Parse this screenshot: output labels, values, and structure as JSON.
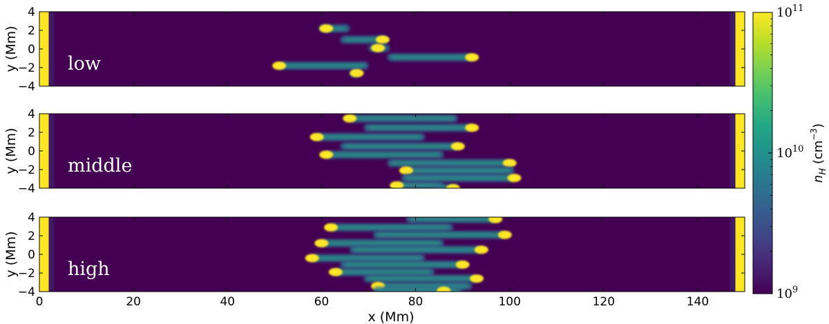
{
  "chart_data": {
    "type": "heatmap",
    "colormap": "viridis",
    "log_scale": true,
    "x_axis": {
      "label": "x  (Mm)",
      "lim": [
        0,
        150
      ],
      "ticks": [
        0,
        20,
        40,
        60,
        80,
        100,
        120,
        140
      ],
      "tick_labels": [
        "0",
        "20",
        "40",
        "60",
        "80",
        "100",
        "120",
        "140"
      ]
    },
    "y_axis": {
      "label": "y  (Mm)",
      "lim": [
        -4,
        4
      ],
      "ticks": [
        -4,
        -2,
        0,
        2,
        4
      ],
      "tick_labels": [
        "−4",
        "−2",
        "0",
        "2",
        "4"
      ]
    },
    "colorbar": {
      "label_main": "n",
      "label_sub": "H",
      "label_unit": " (cm",
      "label_exp": "−3",
      "label_close": ")",
      "range": [
        1000000000.0,
        100000000000.0
      ],
      "ticks": [
        {
          "value": 1000000000.0,
          "base": "10",
          "exp": "9"
        },
        {
          "value": 10000000000.0,
          "base": "10",
          "exp": "10"
        },
        {
          "value": 100000000000.0,
          "base": "10",
          "exp": "11"
        }
      ]
    },
    "panels": [
      {
        "label": "low",
        "background_nH": 1000000000.0,
        "left_wall": {
          "x_end": 2,
          "nH": 100000000000.0
        },
        "right_wall": {
          "x_start": 148,
          "nH": 100000000000.0
        },
        "strands": [
          {
            "y": 2.2,
            "x_start": 59.5,
            "x_end": 66,
            "head_x": 61
          },
          {
            "y": 1.0,
            "x_start": 64,
            "x_end": 74,
            "head_x": 73
          },
          {
            "y": 0.1,
            "x_start": 70,
            "x_end": 74.5,
            "head_x": 72
          },
          {
            "y": -0.9,
            "x_start": 74,
            "x_end": 92,
            "head_x": 92
          },
          {
            "y": -1.8,
            "x_start": 51,
            "x_end": 70,
            "head_x": 51
          },
          {
            "y": -2.6,
            "x_start": 66,
            "x_end": 68,
            "head_x": 67.5
          }
        ]
      },
      {
        "label": "middle",
        "background_nH": 1000000000.0,
        "left_wall": {
          "x_end": 2,
          "nH": 100000000000.0
        },
        "right_wall": {
          "x_start": 148,
          "nH": 100000000000.0
        },
        "strands": [
          {
            "y": 3.5,
            "x_start": 66,
            "x_end": 89,
            "head_x": 66
          },
          {
            "y": 2.5,
            "x_start": 69,
            "x_end": 92,
            "head_x": 92
          },
          {
            "y": 1.5,
            "x_start": 59,
            "x_end": 82,
            "head_x": 59
          },
          {
            "y": 0.5,
            "x_start": 64,
            "x_end": 89,
            "head_x": 89
          },
          {
            "y": -0.4,
            "x_start": 61,
            "x_end": 86,
            "head_x": 61
          },
          {
            "y": -1.3,
            "x_start": 74,
            "x_end": 100,
            "head_x": 100
          },
          {
            "y": -2.1,
            "x_start": 78,
            "x_end": 101,
            "head_x": 78
          },
          {
            "y": -2.9,
            "x_start": 77,
            "x_end": 101,
            "head_x": 101
          },
          {
            "y": -3.7,
            "x_start": 76,
            "x_end": 86,
            "head_x": 76
          },
          {
            "y": -4.0,
            "x_start": 84,
            "x_end": 89,
            "head_x": 88
          }
        ]
      },
      {
        "label": "high",
        "background_nH": 1000000000.0,
        "left_wall": {
          "x_end": 2,
          "nH": 100000000000.0
        },
        "right_wall": {
          "x_start": 148,
          "nH": 100000000000.0
        },
        "strands": [
          {
            "y": 3.8,
            "x_start": 78,
            "x_end": 97,
            "head_x": 97
          },
          {
            "y": 2.9,
            "x_start": 62,
            "x_end": 88,
            "head_x": 62
          },
          {
            "y": 2.1,
            "x_start": 71,
            "x_end": 99,
            "head_x": 99
          },
          {
            "y": 1.2,
            "x_start": 60,
            "x_end": 86,
            "head_x": 60
          },
          {
            "y": 0.5,
            "x_start": 66,
            "x_end": 94,
            "head_x": 94
          },
          {
            "y": -0.4,
            "x_start": 58,
            "x_end": 82,
            "head_x": 58
          },
          {
            "y": -1.1,
            "x_start": 64,
            "x_end": 90,
            "head_x": 90
          },
          {
            "y": -1.9,
            "x_start": 63,
            "x_end": 84,
            "head_x": 63
          },
          {
            "y": -2.6,
            "x_start": 69,
            "x_end": 93,
            "head_x": 93
          },
          {
            "y": -3.4,
            "x_start": 72,
            "x_end": 92,
            "head_x": 72
          },
          {
            "y": -3.9,
            "x_start": 71,
            "x_end": 90,
            "head_x": 86
          }
        ]
      }
    ]
  }
}
